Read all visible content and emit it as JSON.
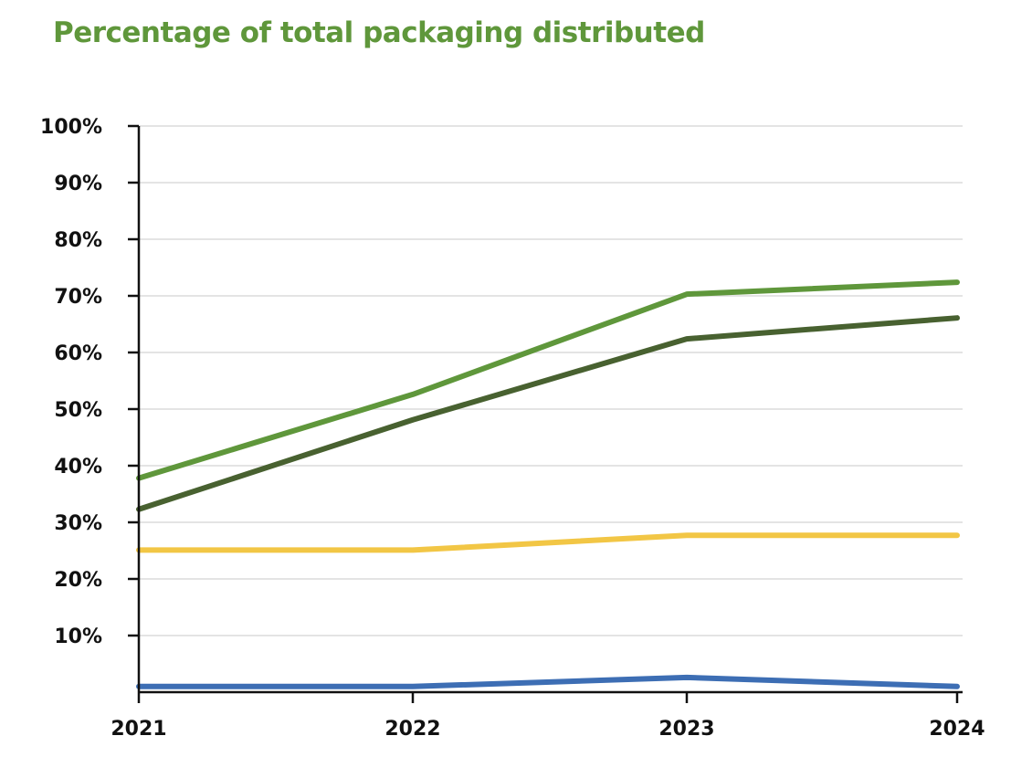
{
  "chart_data": {
    "type": "line",
    "title": "Percentage of total packaging distributed",
    "xlabel": "",
    "ylabel": "",
    "x": [
      "2021",
      "2022",
      "2023",
      "2024"
    ],
    "ylim": [
      0,
      100
    ],
    "yticks": [
      10,
      20,
      30,
      40,
      50,
      60,
      70,
      80,
      90,
      100
    ],
    "ytick_labels": [
      "10%",
      "20%",
      "30%",
      "40%",
      "50%",
      "60%",
      "70%",
      "80%",
      "90%",
      "100%"
    ],
    "grid": true,
    "legend": "none",
    "series": [
      {
        "values": [
          37.8,
          52.6,
          70.3,
          72.4
        ],
        "color": "#5f973b"
      },
      {
        "values": [
          32.3,
          48.1,
          62.4,
          66.1
        ],
        "color": "#486130"
      },
      {
        "values": [
          25.1,
          25.1,
          27.7,
          27.7
        ],
        "color": "#f2c645"
      },
      {
        "values": [
          1.0,
          1.0,
          2.6,
          1.0
        ],
        "color": "#3d6eb4"
      }
    ]
  },
  "colors": {
    "title": "#5f973b",
    "axis": "#111111",
    "grid": "#dcdcdc"
  }
}
